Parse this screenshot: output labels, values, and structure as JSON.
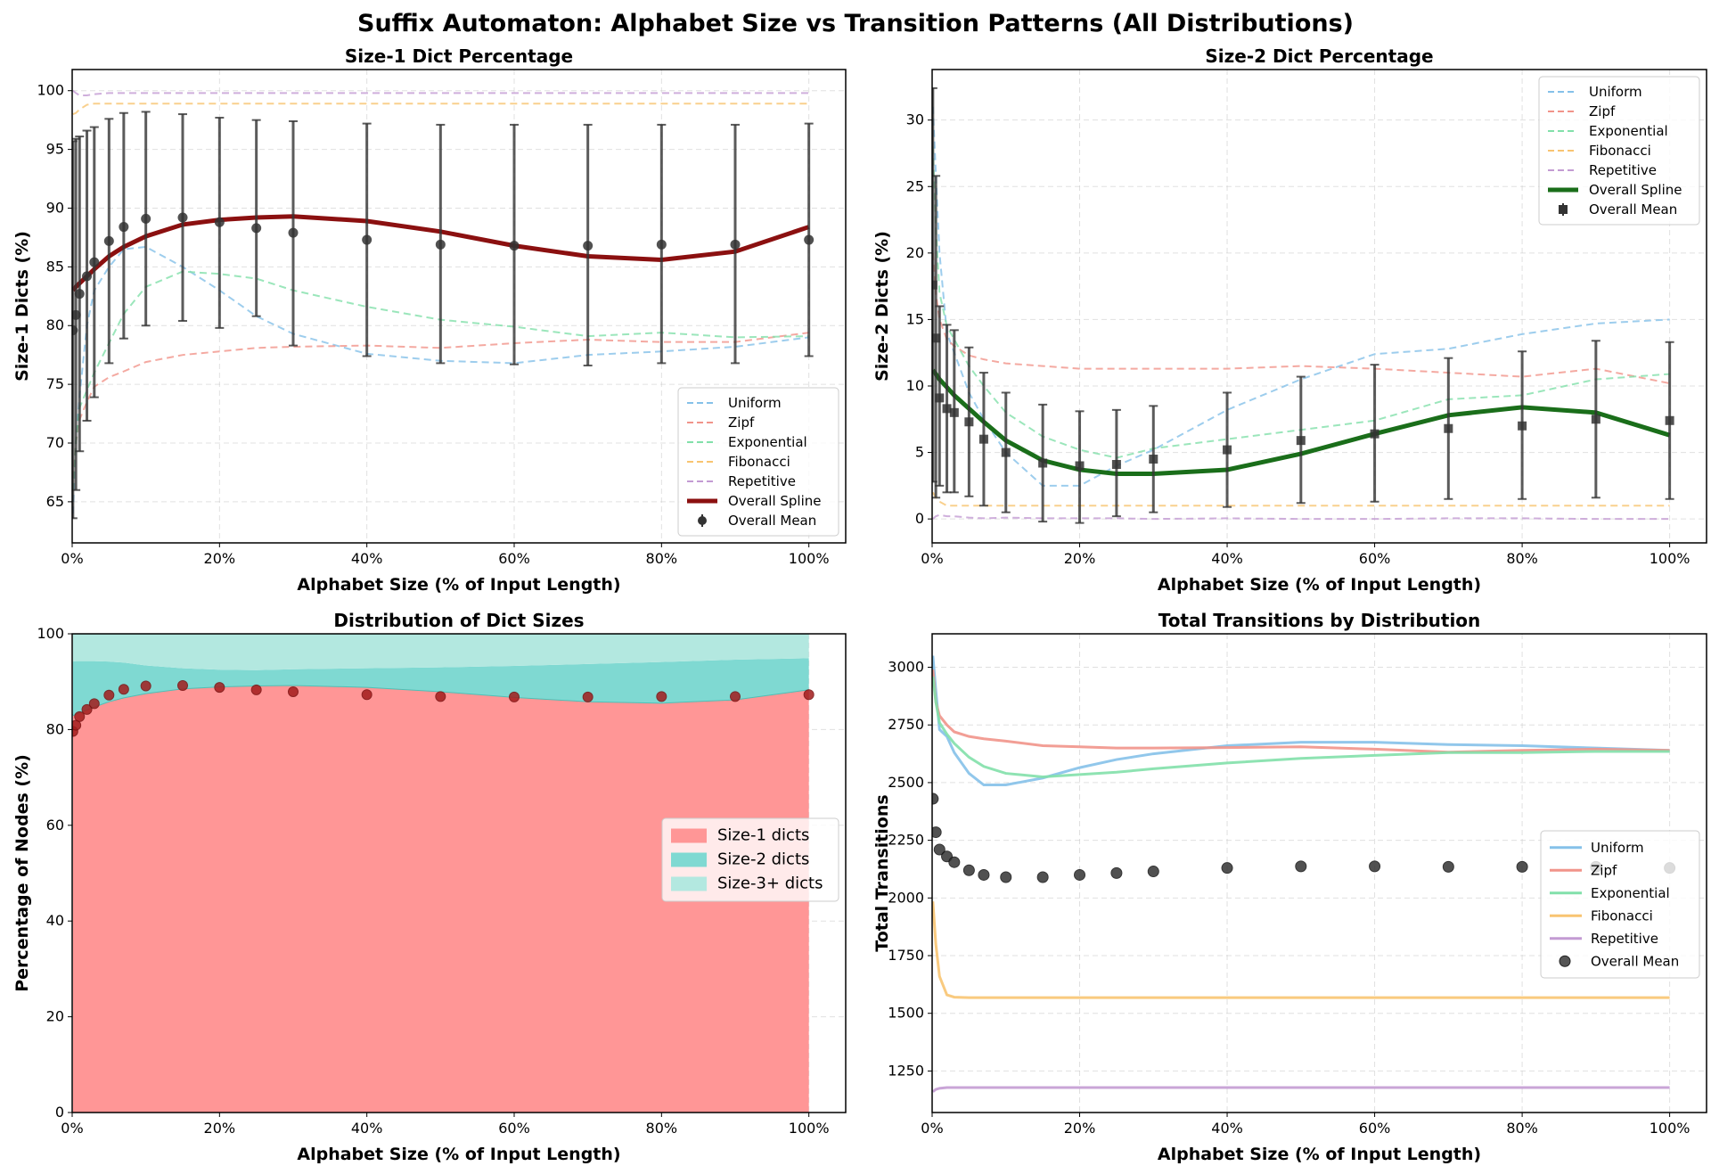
{
  "figure": {
    "title": "Suffix Automaton: Alphabet Size vs Transition Patterns (All Distributions)"
  },
  "colors": {
    "uniform": "#85c1e9",
    "zipf": "#f1948a",
    "exponential": "#82e0aa",
    "fibonacci": "#f8c471",
    "repetitive": "#c39bd3",
    "spline1": "#8b1010",
    "spline2": "#1a6e1a",
    "mean": "#333333",
    "size1_fill": "#ff9696",
    "size2_fill": "#7fd9d2",
    "size3_fill": "#b3e8e0",
    "dict_points": "#a31c1c"
  },
  "chart_data": [
    {
      "id": "size1",
      "type": "line",
      "title": "Size-1 Dict Percentage",
      "xlabel": "Alphabet Size (% of Input Length)",
      "ylabel": "Size-1 Dicts (%)",
      "xlim": [
        0,
        105
      ],
      "ylim": [
        61.5,
        101.8
      ],
      "xticks": [
        0,
        20,
        40,
        60,
        80,
        100
      ],
      "xtick_labels": [
        "0%",
        "20%",
        "40%",
        "60%",
        "80%",
        "100%"
      ],
      "yticks": [
        65,
        70,
        75,
        80,
        85,
        90,
        95,
        100
      ],
      "ytick_labels": [
        "65",
        "70",
        "75",
        "80",
        "85",
        "90",
        "95",
        "100"
      ],
      "grid": true,
      "legend_position": "lower-right",
      "x": [
        0.1,
        0.5,
        1,
        2,
        3,
        5,
        7,
        10,
        15,
        20,
        25,
        30,
        40,
        50,
        60,
        70,
        80,
        90,
        100
      ],
      "series": [
        {
          "name": "Uniform",
          "style": "dashed",
          "color_key": "uniform",
          "values": [
            64,
            70,
            74,
            80,
            83,
            85,
            86.5,
            86.7,
            85,
            83,
            80.8,
            79.3,
            77.6,
            77,
            76.8,
            77.5,
            77.8,
            78.2,
            79
          ]
        },
        {
          "name": "Zipf",
          "style": "dashed",
          "color_key": "zipf",
          "values": [
            67,
            70,
            72,
            73.5,
            74.8,
            75.6,
            76.1,
            76.9,
            77.5,
            77.8,
            78.1,
            78.2,
            78.3,
            78.1,
            78.5,
            78.8,
            78.6,
            78.6,
            79.4
          ]
        },
        {
          "name": "Exponential",
          "style": "dashed",
          "color_key": "exponential",
          "values": [
            66,
            70,
            73,
            74.5,
            76,
            78.5,
            81,
            83.3,
            84.6,
            84.4,
            84,
            83,
            81.6,
            80.5,
            79.9,
            79.1,
            79.4,
            79,
            79.1
          ]
        },
        {
          "name": "Fibonacci",
          "style": "dashed",
          "color_key": "fibonacci",
          "values": [
            98,
            98.1,
            98.4,
            98.8,
            98.9,
            98.9,
            98.9,
            98.9,
            98.9,
            98.9,
            98.9,
            98.9,
            98.9,
            98.9,
            98.9,
            98.9,
            98.9,
            98.9,
            98.9
          ]
        },
        {
          "name": "Repetitive",
          "style": "dashed",
          "color_key": "repetitive",
          "values": [
            100,
            99.8,
            99.6,
            99.6,
            99.7,
            99.8,
            99.8,
            99.8,
            99.8,
            99.8,
            99.8,
            99.8,
            99.8,
            99.8,
            99.8,
            99.8,
            99.8,
            99.8,
            99.8
          ]
        },
        {
          "name": "Overall Spline",
          "style": "solid-thick",
          "color_key": "spline1",
          "values": [
            83,
            83.3,
            83.6,
            84.2,
            84.8,
            85.9,
            86.7,
            87.6,
            88.6,
            89,
            89.2,
            89.3,
            88.9,
            88,
            86.8,
            85.9,
            85.6,
            86.3,
            88.4
          ]
        },
        {
          "name": "Overall Mean",
          "style": "errorbar",
          "color_key": "mean",
          "values": [
            79.6,
            80.9,
            82.7,
            84.2,
            85.4,
            87.2,
            88.4,
            89.1,
            89.2,
            88.8,
            88.3,
            87.9,
            87.3,
            86.9,
            86.8,
            86.8,
            86.9,
            86.9,
            87.3
          ],
          "err_low": [
            63.6,
            66.0,
            69.3,
            71.9,
            73.9,
            76.8,
            78.9,
            80.0,
            80.4,
            79.8,
            80.8,
            78.3,
            77.4,
            76.8,
            76.7,
            76.6,
            76.8,
            76.8,
            77.4
          ],
          "err_high": [
            95.7,
            95.9,
            96.1,
            96.6,
            96.9,
            97.6,
            98.1,
            98.2,
            98.0,
            97.7,
            97.5,
            97.4,
            97.2,
            97.1,
            97.1,
            97.1,
            97.1,
            97.1,
            97.2
          ]
        }
      ]
    },
    {
      "id": "size2",
      "type": "line",
      "title": "Size-2 Dict Percentage",
      "xlabel": "Alphabet Size (% of Input Length)",
      "ylabel": "Size-2 Dicts (%)",
      "xlim": [
        0,
        105
      ],
      "ylim": [
        -1.8,
        33.8
      ],
      "xticks": [
        0,
        20,
        40,
        60,
        80,
        100
      ],
      "xtick_labels": [
        "0%",
        "20%",
        "40%",
        "60%",
        "80%",
        "100%"
      ],
      "yticks": [
        0,
        5,
        10,
        15,
        20,
        25,
        30
      ],
      "ytick_labels": [
        "0",
        "5",
        "10",
        "15",
        "20",
        "25",
        "30"
      ],
      "grid": true,
      "legend_position": "top-right",
      "x": [
        0.1,
        0.5,
        1,
        2,
        3,
        5,
        7,
        10,
        15,
        20,
        25,
        30,
        40,
        50,
        60,
        70,
        80,
        90,
        100
      ],
      "series": [
        {
          "name": "Uniform",
          "style": "dashed",
          "color_key": "uniform",
          "values": [
            31,
            26,
            20,
            14,
            12.5,
            9.5,
            7.5,
            5,
            2.5,
            2.5,
            4,
            5.2,
            8.2,
            10.5,
            12.4,
            12.8,
            13.9,
            14.7,
            15
          ]
        },
        {
          "name": "Zipf",
          "style": "dashed",
          "color_key": "zipf",
          "values": [
            20,
            17,
            15,
            13.5,
            13,
            12.3,
            12,
            11.7,
            11.5,
            11.3,
            11.3,
            11.3,
            11.3,
            11.5,
            11.3,
            11,
            10.7,
            11.3,
            10.2
          ]
        },
        {
          "name": "Exponential",
          "style": "dashed",
          "color_key": "exponential",
          "values": [
            28,
            22,
            17,
            14.5,
            13.5,
            11.5,
            10,
            8,
            6.2,
            5.2,
            4.6,
            5.3,
            6,
            6.7,
            7.4,
            9,
            9.3,
            10.5,
            10.9
          ]
        },
        {
          "name": "Fibonacci",
          "style": "dashed",
          "color_key": "fibonacci",
          "values": [
            2,
            1.6,
            1.3,
            1.0,
            1.0,
            1.0,
            1.0,
            1.0,
            1.0,
            1.0,
            1.0,
            1.0,
            1.0,
            1.0,
            1.0,
            1.0,
            1.0,
            1.0,
            1.0
          ]
        },
        {
          "name": "Repetitive",
          "style": "dashed",
          "color_key": "repetitive",
          "values": [
            0,
            0.2,
            0.3,
            0.2,
            0.2,
            0.1,
            0.05,
            0.1,
            0.05,
            0.05,
            0.05,
            0.0,
            0.05,
            0.0,
            0.0,
            0.05,
            0.05,
            0.0,
            0.0
          ]
        },
        {
          "name": "Overall Spline",
          "style": "solid-thick",
          "color_key": "spline2",
          "values": [
            11.2,
            10.9,
            10.5,
            9.9,
            9.3,
            8.3,
            7.3,
            5.9,
            4.4,
            3.7,
            3.4,
            3.4,
            3.7,
            4.9,
            6.4,
            7.8,
            8.4,
            8.0,
            6.3
          ]
        },
        {
          "name": "Overall Mean",
          "style": "errorbar",
          "color_key": "mean",
          "values": [
            17.6,
            13.6,
            9.1,
            8.3,
            8.0,
            7.3,
            6.0,
            5.0,
            4.2,
            4.0,
            4.1,
            4.5,
            5.2,
            5.9,
            6.4,
            6.8,
            7.0,
            7.5,
            7.4
          ],
          "err_low": [
            2.8,
            1.6,
            2.5,
            2.0,
            2.0,
            1.7,
            1.0,
            0.5,
            -0.2,
            -0.3,
            0.2,
            0.5,
            0.9,
            1.2,
            1.3,
            1.5,
            1.5,
            1.6,
            1.5
          ],
          "err_high": [
            32.4,
            25.8,
            16.0,
            14.6,
            14.2,
            12.9,
            11.0,
            9.5,
            8.6,
            8.1,
            8.2,
            8.5,
            9.5,
            10.7,
            11.6,
            12.1,
            12.6,
            13.4,
            13.3
          ]
        }
      ]
    },
    {
      "id": "dist",
      "type": "area",
      "title": "Distribution of Dict Sizes",
      "xlabel": "Alphabet Size (% of Input Length)",
      "ylabel": "Percentage of Nodes (%)",
      "xlim": [
        0,
        105
      ],
      "ylim": [
        0,
        100
      ],
      "xticks": [
        0,
        20,
        40,
        60,
        80,
        100
      ],
      "xtick_labels": [
        "0%",
        "20%",
        "40%",
        "60%",
        "80%",
        "100%"
      ],
      "yticks": [
        0,
        20,
        40,
        60,
        80,
        100
      ],
      "ytick_labels": [
        "0",
        "20",
        "40",
        "60",
        "80",
        "100"
      ],
      "grid": true,
      "legend_position": "center-right",
      "x": [
        0.1,
        0.5,
        1,
        2,
        3,
        5,
        7,
        10,
        15,
        20,
        25,
        30,
        40,
        50,
        60,
        70,
        80,
        90,
        100
      ],
      "stack": [
        {
          "name": "Size-1 dicts",
          "color_key": "size1_fill",
          "values": [
            83,
            83.3,
            83.6,
            84.2,
            84.8,
            85.9,
            86.7,
            87.6,
            88.6,
            89,
            89.2,
            89.3,
            88.9,
            88,
            86.8,
            85.9,
            85.6,
            86.3,
            88.4
          ]
        },
        {
          "name": "Size-2 dicts",
          "color_key": "size2_fill",
          "values": [
            11.2,
            11.0,
            10.7,
            10.1,
            9.5,
            8.3,
            7.3,
            5.8,
            4.2,
            3.5,
            3.2,
            3.3,
            3.9,
            5.0,
            6.5,
            7.8,
            8.5,
            8.3,
            6.5
          ]
        },
        {
          "name": "Size-3+ dicts",
          "color_key": "size3_fill",
          "values": [
            5.8,
            5.7,
            5.7,
            5.7,
            5.7,
            5.8,
            6.0,
            6.6,
            7.2,
            7.5,
            7.6,
            7.4,
            7.2,
            7.0,
            6.7,
            6.3,
            5.9,
            5.4,
            5.1
          ]
        }
      ],
      "points": {
        "name": "Overall Mean",
        "values": [
          79.6,
          80.9,
          82.7,
          84.2,
          85.4,
          87.2,
          88.4,
          89.1,
          89.2,
          88.8,
          88.3,
          87.9,
          87.3,
          86.9,
          86.8,
          86.8,
          86.9,
          86.9,
          87.3
        ]
      }
    },
    {
      "id": "total",
      "type": "line",
      "title": "Total Transitions by Distribution",
      "xlabel": "Alphabet Size (% of Input Length)",
      "ylabel": "Total Transitions",
      "xlim": [
        0,
        105
      ],
      "ylim": [
        1070,
        3145
      ],
      "xticks": [
        0,
        20,
        40,
        60,
        80,
        100
      ],
      "xtick_labels": [
        "0%",
        "20%",
        "40%",
        "60%",
        "80%",
        "100%"
      ],
      "yticks": [
        1250,
        1500,
        1750,
        2000,
        2250,
        2500,
        2750,
        3000
      ],
      "ytick_labels": [
        "1250",
        "1500",
        "1750",
        "2000",
        "2250",
        "2500",
        "2750",
        "3000"
      ],
      "grid": true,
      "legend_position": "center-right",
      "x": [
        0.1,
        0.5,
        1,
        2,
        3,
        5,
        7,
        10,
        15,
        20,
        25,
        30,
        40,
        50,
        60,
        70,
        80,
        90,
        100
      ],
      "series": [
        {
          "name": "Uniform",
          "color_key": "uniform",
          "values": [
            3050,
            2900,
            2730,
            2700,
            2630,
            2540,
            2490,
            2490,
            2520,
            2565,
            2600,
            2625,
            2660,
            2675,
            2675,
            2665,
            2660,
            2650,
            2640
          ]
        },
        {
          "name": "Zipf",
          "color_key": "zipf",
          "values": [
            2990,
            2850,
            2790,
            2750,
            2720,
            2700,
            2690,
            2680,
            2660,
            2655,
            2650,
            2650,
            2652,
            2655,
            2645,
            2632,
            2640,
            2645,
            2640
          ]
        },
        {
          "name": "Exponential",
          "color_key": "exponential",
          "values": [
            2960,
            2850,
            2760,
            2710,
            2670,
            2610,
            2570,
            2540,
            2525,
            2535,
            2545,
            2560,
            2585,
            2605,
            2618,
            2630,
            2630,
            2635,
            2635
          ]
        },
        {
          "name": "Fibonacci",
          "color_key": "fibonacci",
          "values": [
            1985,
            1800,
            1660,
            1580,
            1570,
            1568,
            1568,
            1568,
            1568,
            1568,
            1568,
            1568,
            1568,
            1568,
            1568,
            1568,
            1568,
            1568,
            1568
          ]
        },
        {
          "name": "Repetitive",
          "color_key": "repetitive",
          "values": [
            1160,
            1170,
            1175,
            1178,
            1178,
            1178,
            1178,
            1178,
            1178,
            1178,
            1178,
            1178,
            1178,
            1178,
            1178,
            1178,
            1178,
            1178,
            1178
          ]
        }
      ],
      "points": {
        "name": "Overall Mean",
        "values": [
          2430,
          2285,
          2210,
          2180,
          2155,
          2120,
          2100,
          2090,
          2090,
          2100,
          2108,
          2115,
          2130,
          2137,
          2137,
          2135,
          2135,
          2135,
          2130
        ]
      }
    }
  ]
}
